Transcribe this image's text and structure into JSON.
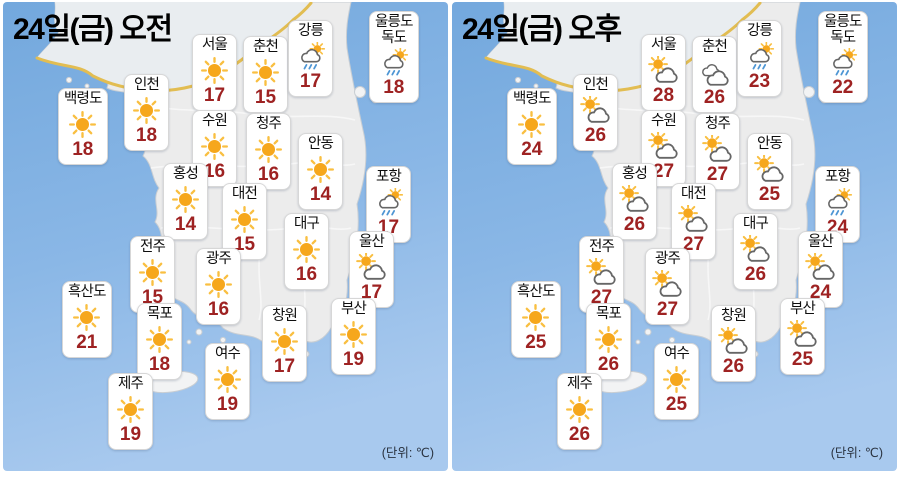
{
  "panels": [
    {
      "id": "morning",
      "title": "24일(금) 오전",
      "unit_label": "(단위: ℃)",
      "cities": [
        {
          "name": "백령도",
          "temp": "18",
          "icon": "sunny"
        },
        {
          "name": "인천",
          "temp": "18",
          "icon": "sunny"
        },
        {
          "name": "서울",
          "temp": "17",
          "icon": "sunny"
        },
        {
          "name": "춘천",
          "temp": "15",
          "icon": "sunny"
        },
        {
          "name": "강릉",
          "temp": "17",
          "icon": "rain"
        },
        {
          "name": "울릉도\n독도",
          "temp": "18",
          "icon": "rain"
        },
        {
          "name": "수원",
          "temp": "16",
          "icon": "sunny"
        },
        {
          "name": "청주",
          "temp": "16",
          "icon": "sunny"
        },
        {
          "name": "안동",
          "temp": "14",
          "icon": "sunny"
        },
        {
          "name": "포항",
          "temp": "17",
          "icon": "rain"
        },
        {
          "name": "홍성",
          "temp": "14",
          "icon": "sunny"
        },
        {
          "name": "대전",
          "temp": "15",
          "icon": "sunny"
        },
        {
          "name": "대구",
          "temp": "16",
          "icon": "sunny"
        },
        {
          "name": "울산",
          "temp": "17",
          "icon": "partly"
        },
        {
          "name": "전주",
          "temp": "15",
          "icon": "sunny"
        },
        {
          "name": "광주",
          "temp": "16",
          "icon": "sunny"
        },
        {
          "name": "흑산도",
          "temp": "21",
          "icon": "sunny"
        },
        {
          "name": "목포",
          "temp": "18",
          "icon": "sunny"
        },
        {
          "name": "창원",
          "temp": "17",
          "icon": "sunny"
        },
        {
          "name": "부산",
          "temp": "19",
          "icon": "sunny"
        },
        {
          "name": "여수",
          "temp": "19",
          "icon": "sunny"
        },
        {
          "name": "제주",
          "temp": "19",
          "icon": "sunny"
        }
      ]
    },
    {
      "id": "afternoon",
      "title": "24일(금) 오후",
      "unit_label": "(단위: ℃)",
      "cities": [
        {
          "name": "백령도",
          "temp": "24",
          "icon": "sunny"
        },
        {
          "name": "인천",
          "temp": "26",
          "icon": "partly"
        },
        {
          "name": "서울",
          "temp": "28",
          "icon": "partly"
        },
        {
          "name": "춘천",
          "temp": "26",
          "icon": "cloudy"
        },
        {
          "name": "강릉",
          "temp": "23",
          "icon": "rain"
        },
        {
          "name": "울릉도\n독도",
          "temp": "22",
          "icon": "rain"
        },
        {
          "name": "수원",
          "temp": "27",
          "icon": "partly"
        },
        {
          "name": "청주",
          "temp": "27",
          "icon": "partly"
        },
        {
          "name": "안동",
          "temp": "25",
          "icon": "partly"
        },
        {
          "name": "포항",
          "temp": "24",
          "icon": "rain"
        },
        {
          "name": "홍성",
          "temp": "26",
          "icon": "partly"
        },
        {
          "name": "대전",
          "temp": "27",
          "icon": "partly"
        },
        {
          "name": "대구",
          "temp": "26",
          "icon": "partly"
        },
        {
          "name": "울산",
          "temp": "24",
          "icon": "partly"
        },
        {
          "name": "전주",
          "temp": "27",
          "icon": "partly"
        },
        {
          "name": "광주",
          "temp": "27",
          "icon": "partly"
        },
        {
          "name": "흑산도",
          "temp": "25",
          "icon": "sunny"
        },
        {
          "name": "목포",
          "temp": "26",
          "icon": "sunny"
        },
        {
          "name": "창원",
          "temp": "26",
          "icon": "partly"
        },
        {
          "name": "부산",
          "temp": "25",
          "icon": "partly"
        },
        {
          "name": "여수",
          "temp": "25",
          "icon": "sunny"
        },
        {
          "name": "제주",
          "temp": "26",
          "icon": "sunny"
        }
      ]
    }
  ],
  "icon_legend": {
    "sunny": "sun-icon",
    "partly": "sun-behind-cloud-icon",
    "cloudy": "clouds-icon",
    "rain": "sun-cloud-rain-icon"
  },
  "colors": {
    "sea_top": "#73a8dd",
    "sea_bottom": "#a8c9ee",
    "land": "#ececec",
    "north_land": "#e9edf0",
    "dmz_line": "#e2bd52",
    "temperature_text": "#9e2222",
    "sun": "#f6a71c",
    "sun_rays": "#f9bf41",
    "cloud_outline": "#666666",
    "rain_streak": "#4e96d4",
    "card_border": "#d7d7d7"
  }
}
